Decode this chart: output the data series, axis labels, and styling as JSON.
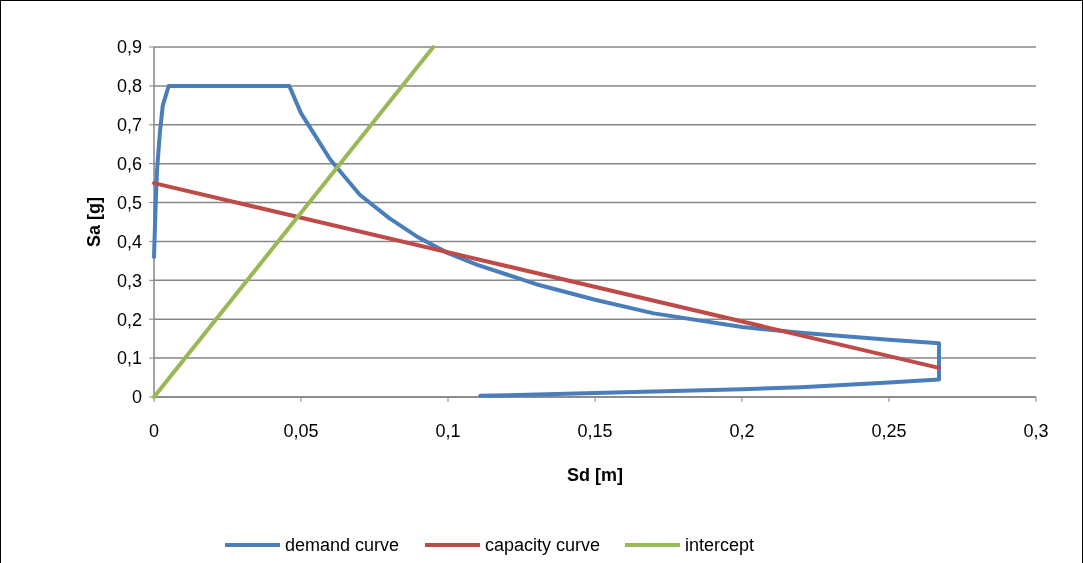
{
  "chart_data": {
    "type": "line",
    "xlabel": "Sd [m]",
    "ylabel": "Sa [g]",
    "xlim": [
      0,
      0.3
    ],
    "ylim": [
      0,
      0.9
    ],
    "xticks": [
      0,
      {
        "value": 0.05,
        "label": "0,05"
      },
      {
        "value": 0.1,
        "label": "0,1"
      },
      {
        "value": 0.15,
        "label": "0,15"
      },
      {
        "value": 0.2,
        "label": "0,2"
      },
      {
        "value": 0.25,
        "label": "0,25"
      },
      {
        "value": 0.3,
        "label": "0,3"
      }
    ],
    "yticks": [
      0,
      {
        "value": 0.1,
        "label": "0,1"
      },
      {
        "value": 0.2,
        "label": "0,2"
      },
      {
        "value": 0.3,
        "label": "0,3"
      },
      {
        "value": 0.4,
        "label": "0,4"
      },
      {
        "value": 0.5,
        "label": "0,5"
      },
      {
        "value": 0.6,
        "label": "0,6"
      },
      {
        "value": 0.7,
        "label": "0,7"
      },
      {
        "value": 0.8,
        "label": "0,8"
      },
      {
        "value": 0.9,
        "label": "0,9"
      }
    ],
    "grid": "y",
    "legend": "bottom",
    "marker": "none",
    "line_style": "solid",
    "series": [
      {
        "name": "demand curve",
        "color": "#4a7ebb",
        "x": [
          0,
          0.0005,
          0.001,
          0.002,
          0.003,
          0.005,
          0.046,
          0.05,
          0.06,
          0.07,
          0.08,
          0.09,
          0.1,
          0.11,
          0.12,
          0.13,
          0.15,
          0.17,
          0.2,
          0.22,
          0.25,
          0.267,
          0.267,
          0.25,
          0.22,
          0.2,
          0.15,
          0.111
        ],
        "values": [
          0.36,
          0.48,
          0.58,
          0.68,
          0.75,
          0.8,
          0.8,
          0.73,
          0.61,
          0.52,
          0.46,
          0.41,
          0.37,
          0.34,
          0.315,
          0.29,
          0.25,
          0.215,
          0.18,
          0.165,
          0.147,
          0.138,
          0.045,
          0.037,
          0.025,
          0.02,
          0.01,
          0.003
        ]
      },
      {
        "name": "capacity curve",
        "color": "#be4b48",
        "x": [
          0,
          0.267
        ],
        "values": [
          0.55,
          0.075
        ]
      },
      {
        "name": "intercept",
        "color": "#98b954",
        "x": [
          0,
          0.095
        ],
        "values": [
          0,
          0.9
        ]
      }
    ]
  }
}
